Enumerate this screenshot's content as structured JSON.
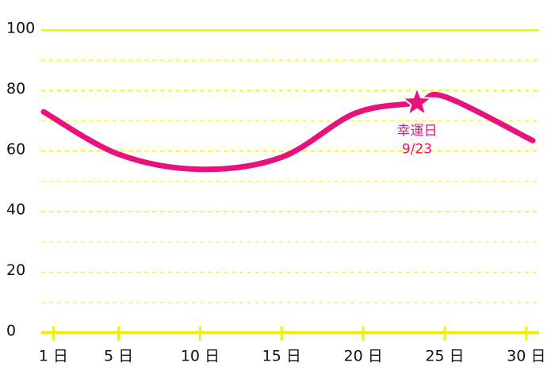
{
  "chart_data": {
    "type": "line",
    "x": [
      0.4,
      5,
      10,
      15,
      19.5,
      23.3,
      25,
      30.4
    ],
    "series": [
      {
        "color": "#e8127c",
        "values": [
          73,
          59,
          54,
          58,
          72.5,
          76,
          78,
          63.5
        ]
      }
    ],
    "xlim": [
      0.4,
      30.4
    ],
    "xticks": [
      {
        "value": 1,
        "label": "1 日"
      },
      {
        "value": 5,
        "label": "5 日"
      },
      {
        "value": 10,
        "label": "10 日"
      },
      {
        "value": 15,
        "label": "15 日"
      },
      {
        "value": 20,
        "label": "20 日"
      },
      {
        "value": 25,
        "label": "25 日"
      },
      {
        "value": 30,
        "label": "30 日"
      }
    ],
    "ylim": [
      0,
      100
    ],
    "yticks": [
      0,
      20,
      40,
      60,
      80,
      100
    ],
    "minor_grid": [
      10,
      30,
      50,
      70,
      90
    ],
    "grid_color": "#f5f200",
    "annotation": {
      "x": 23.3,
      "y": 76,
      "label": "幸運日",
      "sublabel": "9/23"
    }
  }
}
